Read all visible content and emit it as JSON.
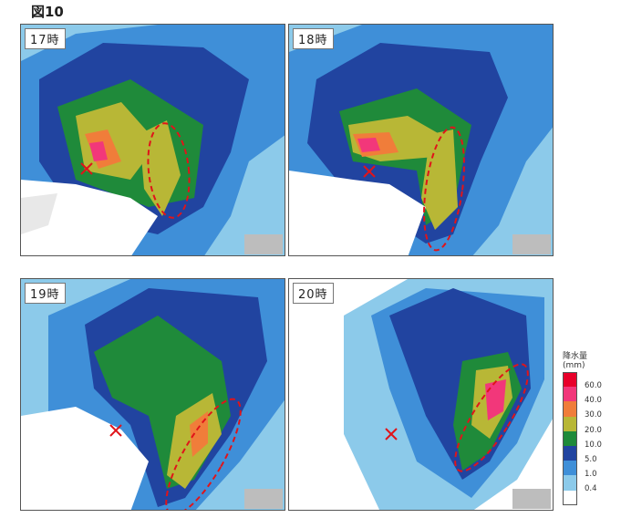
{
  "figure_title": "図10",
  "panels": [
    {
      "time_label": "17時",
      "marker_icon": "cross-marker-icon"
    },
    {
      "time_label": "18時",
      "marker_icon": "cross-marker-icon"
    },
    {
      "time_label": "19時",
      "marker_icon": "cross-marker-icon"
    },
    {
      "time_label": "20時",
      "marker_icon": "cross-marker-icon"
    }
  ],
  "legend": {
    "title": "降水量",
    "units": "(mm)",
    "levels": [
      {
        "label": "60.0",
        "color": "#e8002a"
      },
      {
        "label": "40.0",
        "color": "#f2377a"
      },
      {
        "label": "30.0",
        "color": "#f07d3a"
      },
      {
        "label": "20.0",
        "color": "#b8b736"
      },
      {
        "label": "10.0",
        "color": "#1f8a3a"
      },
      {
        "label": "5.0",
        "color": "#2144a0"
      },
      {
        "label": "1.0",
        "color": "#3f8fd8"
      },
      {
        "label": "0.4",
        "color": "#8ccaea"
      }
    ],
    "below_color": "#ffffff"
  },
  "colors": {
    "highlight_ellipse": "#e0141a",
    "marker": "#e0141a",
    "no_data": "#bdbdbd"
  }
}
